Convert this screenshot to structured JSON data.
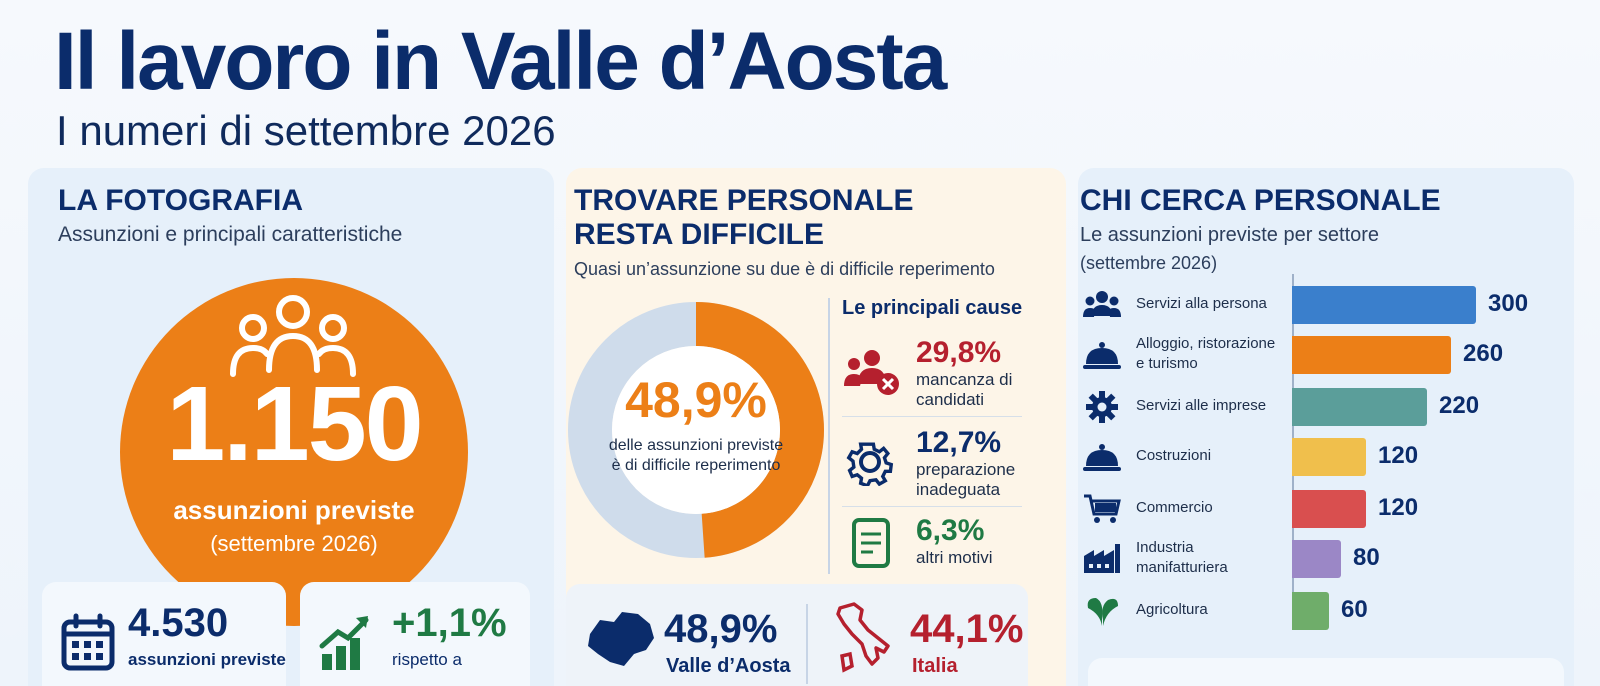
{
  "header": {
    "title": "Il lavoro in Valle d’Aosta",
    "subtitle": "I numeri di settembre 2026"
  },
  "colors": {
    "navy": "#0b2c6b",
    "orange": "#ec7f17",
    "green": "#1f7a44",
    "red": "#b5202e"
  },
  "fotografia": {
    "title": "LA FOTOGRAFIA",
    "subtitle": "Assunzioni e principali caratteristiche",
    "main_value": "1.150",
    "main_label": "assunzioni previste",
    "main_period": "(settembre 2026)",
    "stats": [
      {
        "icon": "calendar-icon",
        "value": "4.530",
        "label": "assunzioni previste"
      },
      {
        "icon": "growth-chart-icon",
        "value": "+1,1%",
        "label": "rispetto a"
      }
    ]
  },
  "difficolta": {
    "title_line1": "TROVARE PERSONALE",
    "title_line2": "RESTA DIFFICILE",
    "subtitle": "Quasi un’assunzione su due è di difficile reperimento",
    "donut_value": "48,9%",
    "donut_fraction": 0.489,
    "donut_text": "delle assunzioni previste è di difficile reperimento",
    "causes_title": "Le principali cause",
    "causes": [
      {
        "icon": "people-x-icon",
        "value": "29,8%",
        "line1": "mancanza di",
        "line2": "candidati",
        "color": "#b5202e"
      },
      {
        "icon": "gear-icon",
        "value": "12,7%",
        "line1": "preparazione",
        "line2": "inadeguata",
        "color": "#0b2c6b"
      },
      {
        "icon": "document-icon",
        "value": "6,3%",
        "line1": "altri motivi",
        "line2": "",
        "color": "#1f7a44"
      }
    ],
    "compare": [
      {
        "icon": "valle-aosta-map-icon",
        "value": "48,9%",
        "label": "Valle d’Aosta"
      },
      {
        "icon": "italy-map-icon",
        "value": "44,1%",
        "label": "Italia"
      }
    ]
  },
  "settori": {
    "title": "CHI CERCA PERSONALE",
    "subtitle_line1": "Le assunzioni previste per settore",
    "subtitle_line2": "(settembre 2026)"
  },
  "chart_data": {
    "type": "bar",
    "orientation": "horizontal",
    "categories": [
      "Servizi alla persona",
      "Alloggio, ristorazione e turismo",
      "Servizi alle imprese",
      "Costruzioni",
      "Commercio",
      "Industria manifatturiera",
      "Agricoltura"
    ],
    "label_lines": [
      [
        "Servizi alla persona"
      ],
      [
        "Alloggio, ristorazione",
        "e turismo"
      ],
      [
        "Servizi alle imprese"
      ],
      [
        "Costruzioni"
      ],
      [
        "Commercio"
      ],
      [
        "Industria",
        "manifatturiera"
      ],
      [
        "Agricoltura"
      ]
    ],
    "values": [
      300,
      260,
      220,
      120,
      120,
      80,
      60
    ],
    "value_labels": [
      "300",
      "260",
      "220",
      "120",
      "120",
      "80",
      "60"
    ],
    "bar_colors": [
      "#3a7fcc",
      "#ec7f17",
      "#5b9e9a",
      "#f0bf4c",
      "#d94f4f",
      "#9b87c6",
      "#6fad6a"
    ],
    "icons": [
      "people-group-icon",
      "cloche-icon",
      "gear-icon",
      "cloche-icon",
      "cart-icon",
      "factory-icon",
      "leaf-icon"
    ],
    "xlim": [
      0,
      300
    ],
    "grid": false
  }
}
